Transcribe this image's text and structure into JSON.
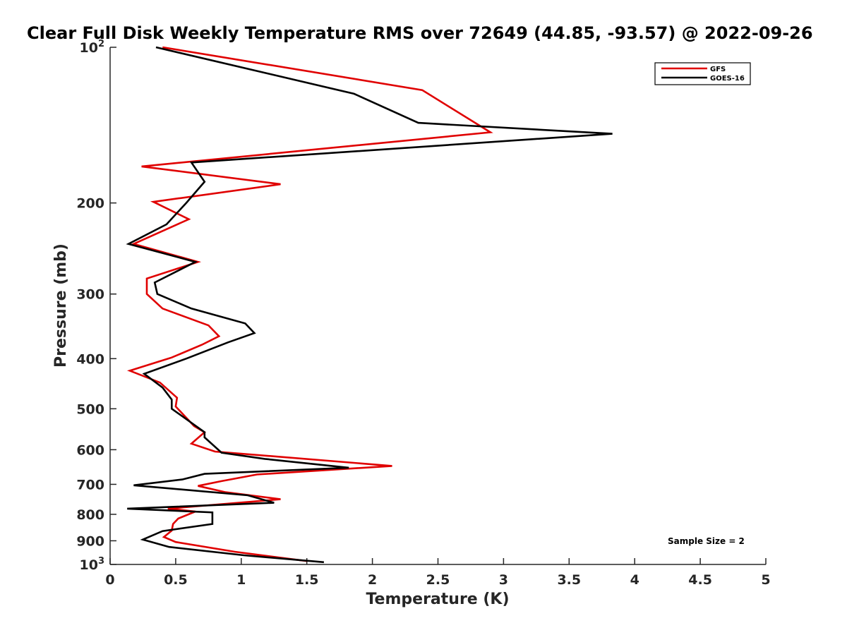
{
  "chart_data": {
    "type": "line",
    "title": "Clear Full Disk Weekly Temperature RMS over 72649 (44.85, -93.57) @ 2022-09-26",
    "xlabel": "Temperature (K)",
    "ylabel": "Pressure (mb)",
    "xlim": [
      0,
      5
    ],
    "ylim": [
      100,
      1000
    ],
    "y_scale": "log",
    "y_reversed": true,
    "x_ticks": [
      0,
      0.5,
      1,
      1.5,
      2,
      2.5,
      3,
      3.5,
      4,
      4.5,
      5
    ],
    "x_tick_labels": [
      "0",
      "0.5",
      "1",
      "1.5",
      "2",
      "2.5",
      "3",
      "3.5",
      "4",
      "4.5",
      "5"
    ],
    "y_ticks": [
      {
        "value": 100,
        "base": "10",
        "exp": "2"
      },
      {
        "value": 200,
        "label": "200"
      },
      {
        "value": 300,
        "label": "300"
      },
      {
        "value": 400,
        "label": "400"
      },
      {
        "value": 500,
        "label": "500"
      },
      {
        "value": 600,
        "label": "600"
      },
      {
        "value": 700,
        "label": "700"
      },
      {
        "value": 800,
        "label": "800"
      },
      {
        "value": 900,
        "label": "900"
      },
      {
        "value": 1000,
        "base": "10",
        "exp": "3"
      }
    ],
    "grid": false,
    "legend_position": "top-right",
    "annotation": "Sample Size = 2",
    "series": [
      {
        "name": "GFS",
        "color": "#e00000",
        "points": [
          [
            0.4,
            100
          ],
          [
            2.38,
            121
          ],
          [
            2.9,
            146
          ],
          [
            0.24,
            170
          ],
          [
            1.3,
            184
          ],
          [
            0.33,
            199
          ],
          [
            0.6,
            215
          ],
          [
            0.18,
            240
          ],
          [
            0.67,
            260
          ],
          [
            0.28,
            280
          ],
          [
            0.28,
            300
          ],
          [
            0.4,
            320
          ],
          [
            0.75,
            345
          ],
          [
            0.83,
            362
          ],
          [
            0.7,
            376
          ],
          [
            0.47,
            398
          ],
          [
            0.15,
            422
          ],
          [
            0.38,
            445
          ],
          [
            0.51,
            476
          ],
          [
            0.5,
            495
          ],
          [
            0.64,
            540
          ],
          [
            0.72,
            555
          ],
          [
            0.62,
            584
          ],
          [
            0.8,
            605
          ],
          [
            2.15,
            645
          ],
          [
            1.12,
            670
          ],
          [
            0.85,
            690
          ],
          [
            0.67,
            705
          ],
          [
            0.88,
            725
          ],
          [
            1.3,
            748
          ],
          [
            0.44,
            780
          ],
          [
            0.65,
            790
          ],
          [
            0.52,
            815
          ],
          [
            0.48,
            835
          ],
          [
            0.47,
            860
          ],
          [
            0.41,
            885
          ],
          [
            0.5,
            905
          ],
          [
            0.95,
            945
          ],
          [
            1.5,
            985
          ]
        ]
      },
      {
        "name": "GOES-16",
        "color": "#000000",
        "points": [
          [
            0.35,
            100
          ],
          [
            1.86,
            123
          ],
          [
            2.35,
            140
          ],
          [
            3.83,
            147
          ],
          [
            0.62,
            167
          ],
          [
            0.72,
            182
          ],
          [
            0.58,
            200
          ],
          [
            0.43,
            220
          ],
          [
            0.14,
            240
          ],
          [
            0.65,
            260
          ],
          [
            0.34,
            285
          ],
          [
            0.36,
            300
          ],
          [
            0.62,
            320
          ],
          [
            1.03,
            342
          ],
          [
            1.1,
            357
          ],
          [
            0.9,
            372
          ],
          [
            0.58,
            400
          ],
          [
            0.26,
            428
          ],
          [
            0.4,
            455
          ],
          [
            0.47,
            480
          ],
          [
            0.47,
            500
          ],
          [
            0.72,
            555
          ],
          [
            0.72,
            568
          ],
          [
            0.85,
            608
          ],
          [
            1.18,
            625
          ],
          [
            1.82,
            650
          ],
          [
            0.72,
            668
          ],
          [
            0.55,
            685
          ],
          [
            0.18,
            703
          ],
          [
            1.05,
            735
          ],
          [
            1.25,
            760
          ],
          [
            0.13,
            780
          ],
          [
            0.78,
            793
          ],
          [
            0.78,
            835
          ],
          [
            0.4,
            862
          ],
          [
            0.25,
            895
          ],
          [
            0.45,
            925
          ],
          [
            1.02,
            960
          ],
          [
            1.63,
            990
          ]
        ]
      }
    ]
  }
}
